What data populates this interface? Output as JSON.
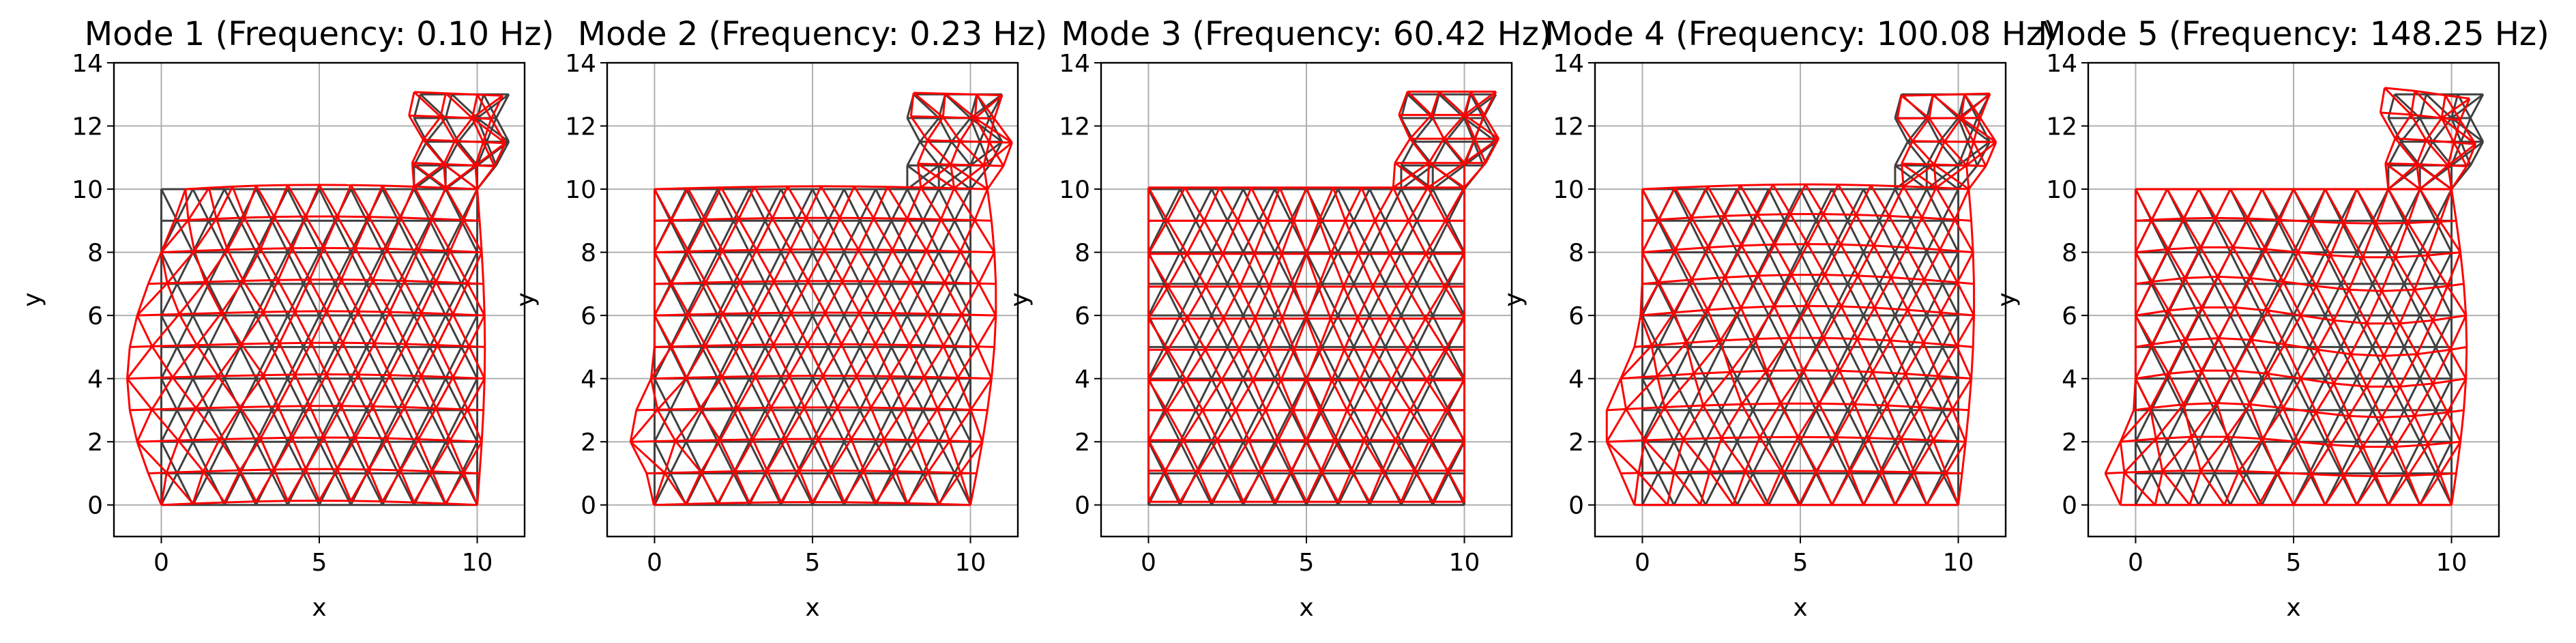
{
  "figure": {
    "background": "#ffffff",
    "original_mesh_color": "#404040",
    "deformed_mesh_color": "#ff0000"
  },
  "chart_data": [
    {
      "type": "scatter",
      "title": "Mode 1 (Frequency: 0.10 Hz)",
      "xlabel": "x",
      "ylabel": "y",
      "xlim": [
        -1.5,
        11.5
      ],
      "ylim": [
        -1,
        14
      ],
      "xticks": [
        0,
        5,
        10
      ],
      "xtick_labels": [
        "0",
        "5",
        "10"
      ],
      "yticks": [
        0,
        2,
        4,
        6,
        8,
        10,
        12,
        14
      ],
      "ytick_labels": [
        "0",
        "2",
        "4",
        "6",
        "8",
        "10",
        "12",
        "14"
      ],
      "grid": true,
      "frequency_hz": 0.1,
      "series": [
        {
          "style": "original-mesh",
          "color": "#404040"
        },
        {
          "style": "deformed-mesh",
          "color": "#ff0000",
          "deformation": {
            "kind": "inward-left",
            "amplitude": 0.9
          }
        }
      ]
    },
    {
      "type": "scatter",
      "title": "Mode 2 (Frequency: 0.23 Hz)",
      "xlabel": "x",
      "ylabel": "y",
      "xlim": [
        -1.5,
        11.5
      ],
      "ylim": [
        -1,
        14
      ],
      "xticks": [
        0,
        5,
        10
      ],
      "xtick_labels": [
        "0",
        "5",
        "10"
      ],
      "yticks": [
        0,
        2,
        4,
        6,
        8,
        10,
        12,
        14
      ],
      "ytick_labels": [
        "0",
        "2",
        "4",
        "6",
        "8",
        "10",
        "12",
        "14"
      ],
      "grid": true,
      "frequency_hz": 0.23,
      "series": [
        {
          "style": "original-mesh",
          "color": "#404040"
        },
        {
          "style": "deformed-mesh",
          "color": "#ff0000",
          "deformation": {
            "kind": "bulge-right",
            "amplitude": 0.9
          }
        }
      ]
    },
    {
      "type": "scatter",
      "title": "Mode 3 (Frequency: 60.42 Hz)",
      "xlabel": "x",
      "ylabel": "y",
      "xlim": [
        -1.5,
        11.5
      ],
      "ylim": [
        -1,
        14
      ],
      "xticks": [
        0,
        5,
        10
      ],
      "xtick_labels": [
        "0",
        "5",
        "10"
      ],
      "yticks": [
        0,
        2,
        4,
        6,
        8,
        10,
        12,
        14
      ],
      "ytick_labels": [
        "0",
        "2",
        "4",
        "6",
        "8",
        "10",
        "12",
        "14"
      ],
      "grid": true,
      "frequency_hz": 60.42,
      "series": [
        {
          "style": "original-mesh",
          "color": "#404040"
        },
        {
          "style": "deformed-mesh",
          "color": "#ff0000",
          "deformation": {
            "kind": "wave-x",
            "amplitude": 0.5
          }
        }
      ]
    },
    {
      "type": "scatter",
      "title": "Mode 4 (Frequency: 100.08 Hz)",
      "xlabel": "x",
      "ylabel": "y",
      "xlim": [
        -1.5,
        11.5
      ],
      "ylim": [
        -1,
        14
      ],
      "xticks": [
        0,
        5,
        10
      ],
      "xtick_labels": [
        "0",
        "5",
        "10"
      ],
      "yticks": [
        0,
        2,
        4,
        6,
        8,
        10,
        12,
        14
      ],
      "ytick_labels": [
        "0",
        "2",
        "4",
        "6",
        "8",
        "10",
        "12",
        "14"
      ],
      "grid": true,
      "frequency_hz": 100.08,
      "series": [
        {
          "style": "original-mesh",
          "color": "#404040"
        },
        {
          "style": "deformed-mesh",
          "color": "#ff0000",
          "deformation": {
            "kind": "left-lower-bulge",
            "amplitude": 1.0
          }
        }
      ]
    },
    {
      "type": "scatter",
      "title": "Mode 5 (Frequency: 148.25 Hz)",
      "xlabel": "x",
      "ylabel": "y",
      "xlim": [
        -1.5,
        11.5
      ],
      "ylim": [
        -1,
        14
      ],
      "xticks": [
        0,
        5,
        10
      ],
      "xtick_labels": [
        "0",
        "5",
        "10"
      ],
      "yticks": [
        0,
        2,
        4,
        6,
        8,
        10,
        12,
        14
      ],
      "ytick_labels": [
        "0",
        "2",
        "4",
        "6",
        "8",
        "10",
        "12",
        "14"
      ],
      "grid": true,
      "frequency_hz": 148.25,
      "series": [
        {
          "style": "original-mesh",
          "color": "#404040"
        },
        {
          "style": "deformed-mesh",
          "color": "#ff0000",
          "deformation": {
            "kind": "twist",
            "amplitude": 0.8
          }
        }
      ]
    }
  ]
}
